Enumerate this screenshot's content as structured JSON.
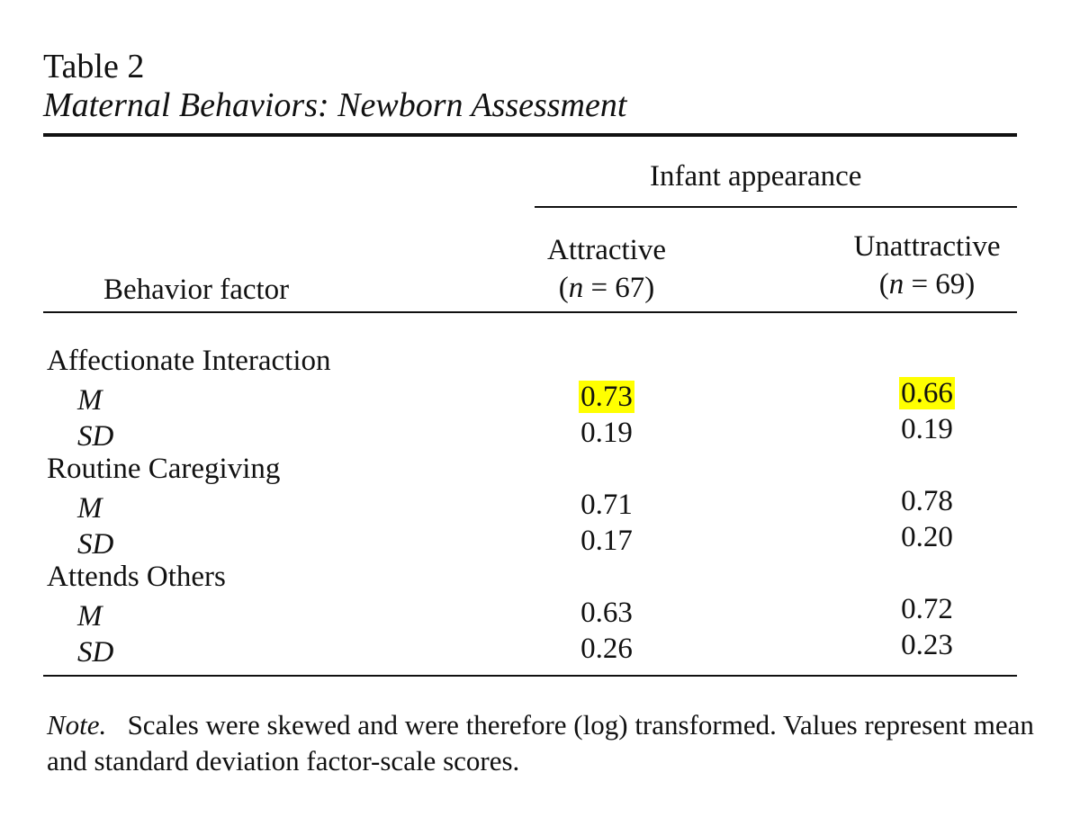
{
  "table": {
    "label": "Table 2",
    "caption": "Maternal Behaviors: Newborn Assessment",
    "spanner": "Infant appearance",
    "stub_header": "Behavior factor",
    "columns": [
      {
        "name": "Attractive",
        "n_label": "n",
        "n_rest": " = 67)"
      },
      {
        "name": "Unattractive",
        "n_label": "n",
        "n_rest": " = 69)"
      }
    ],
    "groups": [
      {
        "label": "Affectionate Interaction",
        "rows": [
          {
            "stat": "M",
            "values": [
              "0.73",
              "0.66"
            ],
            "highlight": [
              true,
              true
            ]
          },
          {
            "stat": "SD",
            "values": [
              "0.19",
              "0.19"
            ],
            "highlight": [
              false,
              false
            ]
          }
        ]
      },
      {
        "label": "Routine Caregiving",
        "rows": [
          {
            "stat": "M",
            "values": [
              "0.71",
              "0.78"
            ],
            "highlight": [
              false,
              false
            ]
          },
          {
            "stat": "SD",
            "values": [
              "0.17",
              "0.20"
            ],
            "highlight": [
              false,
              false
            ]
          }
        ]
      },
      {
        "label": "Attends Others",
        "rows": [
          {
            "stat": "M",
            "values": [
              "0.63",
              "0.72"
            ],
            "highlight": [
              false,
              false
            ]
          },
          {
            "stat": "SD",
            "values": [
              "0.26",
              "0.23"
            ],
            "highlight": [
              false,
              false
            ]
          }
        ]
      }
    ],
    "note_label": "Note.",
    "note_text": "Scales were skewed and were therefore (log) transformed. Values represent mean and standard deviation factor-scale scores.",
    "highlight_color": "#ffff00"
  }
}
